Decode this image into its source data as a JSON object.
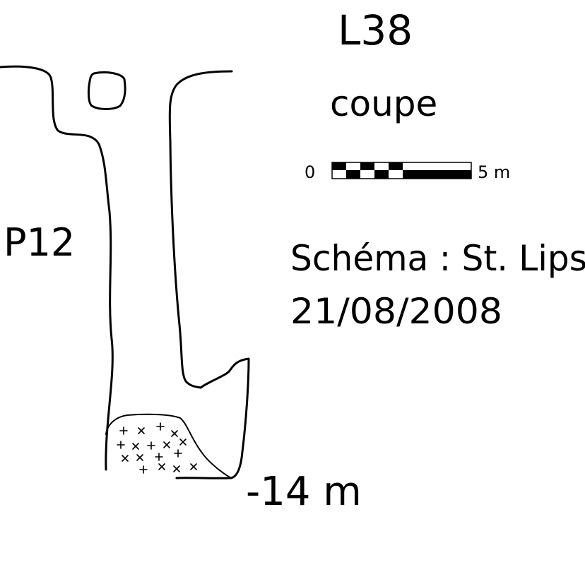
{
  "diagram": {
    "cave_id": "L38",
    "view_type": "coupe",
    "pitch_label": "P12",
    "depth_label": "-14 m",
    "scale_bar": {
      "start_label": "0",
      "end_label": "5 m",
      "segments": 5
    },
    "credit_line": "Schéma : St. Lips",
    "date_line": "21/08/2008"
  },
  "colors": {
    "ink": "#000000",
    "paper": "#ffffff"
  }
}
